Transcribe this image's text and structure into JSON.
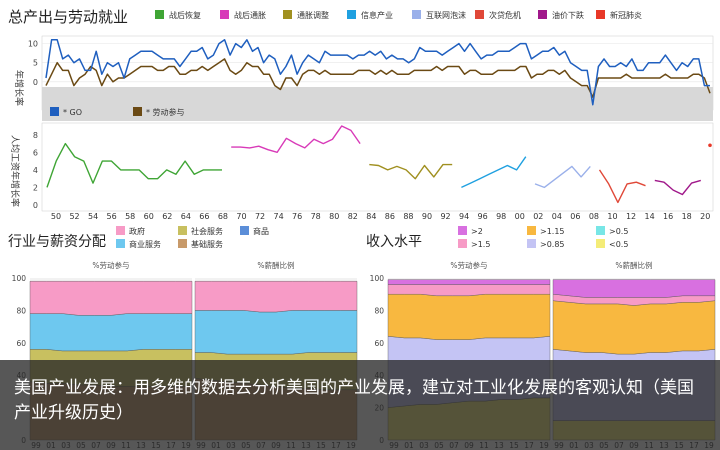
{
  "chart_data": [
    {
      "type": "line",
      "title": "总产出与劳动就业",
      "ylabel": "年增长率",
      "legend": [
        {
          "label": "战后恢复",
          "color": "#3fa535"
        },
        {
          "label": "战后通胀",
          "color": "#d83ab8"
        },
        {
          "label": "通胀调整",
          "color": "#a09020"
        },
        {
          "label": "信息产业",
          "color": "#1fa0e0"
        },
        {
          "label": "互联网泡沫",
          "color": "#9ab0ea"
        },
        {
          "label": "次贷危机",
          "color": "#e04838"
        },
        {
          "label": "油价下跌",
          "color": "#a0188a"
        },
        {
          "label": "新冠肺炎",
          "color": "#e83828"
        }
      ],
      "yticks": [
        10,
        5,
        0
      ],
      "ylim": [
        -10,
        12
      ],
      "series": [
        {
          "name": "* GO",
          "color": "#1f5fbf",
          "values": [
            1,
            11,
            11,
            6,
            7,
            5,
            6,
            3,
            3,
            8,
            2,
            5,
            4,
            5,
            1,
            6,
            7,
            8,
            8,
            8,
            7,
            6,
            6,
            6,
            4,
            6,
            8,
            8,
            9,
            6,
            7,
            10,
            11,
            7,
            10,
            9,
            11,
            8,
            9,
            5,
            7,
            6,
            2,
            4,
            7,
            2,
            5,
            7,
            6,
            5,
            8,
            7,
            7,
            7,
            7,
            6,
            7,
            7,
            8,
            7,
            8,
            6,
            7,
            6,
            6,
            5,
            6,
            9,
            8,
            8,
            8,
            7,
            8,
            9,
            10,
            8,
            10,
            8,
            6,
            7,
            7,
            8,
            8,
            8,
            9,
            10,
            10,
            6,
            7,
            8,
            8,
            9,
            7,
            8,
            5,
            4,
            3,
            3,
            -6,
            4,
            6,
            4,
            4,
            5,
            4,
            6,
            3,
            3,
            5,
            5,
            5,
            7,
            5,
            3,
            5,
            4,
            6,
            6,
            -1,
            -1
          ]
        },
        {
          "name": "* 劳动参与",
          "color": "#6b4a14",
          "values": [
            -1,
            2,
            5,
            3,
            3,
            -1,
            1,
            2,
            4,
            3,
            -1,
            2,
            0,
            1,
            1,
            2,
            3,
            4,
            4,
            4,
            3,
            3,
            4,
            4,
            2,
            2,
            3,
            3,
            4,
            3,
            4,
            5,
            6,
            3,
            2,
            3,
            5,
            4,
            4,
            2,
            2,
            -1,
            -2,
            1,
            1,
            -1,
            2,
            3,
            3,
            2,
            3,
            2,
            2,
            2,
            2,
            2,
            3,
            3,
            3,
            2,
            3,
            2,
            3,
            2,
            2,
            2,
            3,
            3,
            3,
            3,
            4,
            3,
            4,
            4,
            4,
            2,
            3,
            3,
            2,
            2,
            2,
            3,
            3,
            3,
            3,
            4,
            4,
            1,
            2,
            2,
            3,
            3,
            2,
            3,
            1,
            0,
            -1,
            -1,
            -4,
            1,
            1,
            1,
            1,
            1,
            2,
            1,
            1,
            1,
            1,
            1,
            1,
            2,
            1,
            1,
            1,
            1,
            2,
            2,
            1,
            -3
          ]
        }
      ]
    },
    {
      "type": "line",
      "ylabel": "人均工资年增长率",
      "x": [
        "50",
        "52",
        "54",
        "56",
        "58",
        "60",
        "62",
        "64",
        "66",
        "68",
        "70",
        "72",
        "74",
        "76",
        "78",
        "80",
        "82",
        "84",
        "86",
        "88",
        "90",
        "92",
        "94",
        "96",
        "98",
        "00",
        "02",
        "04",
        "06",
        "08",
        "10",
        "12",
        "14",
        "16",
        "18",
        "20"
      ],
      "yticks": [
        8,
        6,
        4,
        2,
        0
      ],
      "ylim": [
        0,
        9
      ],
      "segments": [
        {
          "color": "#3fa535",
          "x": [
            48,
            49,
            50,
            51,
            52,
            53,
            54,
            55,
            56,
            57,
            58,
            59,
            60,
            61,
            62,
            63,
            64,
            65,
            66,
            67
          ],
          "y": [
            2,
            5,
            7,
            5.5,
            5,
            2.5,
            5,
            5,
            4,
            4,
            4,
            3,
            3,
            4,
            3.5,
            5,
            3.5,
            4,
            4,
            4
          ]
        },
        {
          "color": "#d83ab8",
          "x": [
            68,
            69,
            70,
            71,
            72,
            73,
            74,
            75,
            76,
            77,
            78,
            79,
            80,
            81,
            82
          ],
          "y": [
            6.6,
            6.6,
            6.5,
            6.7,
            6.3,
            6,
            7.6,
            7,
            6.5,
            7.5,
            7,
            7.5,
            9,
            8.5,
            7
          ]
        },
        {
          "color": "#a09020",
          "x": [
            83,
            84,
            85,
            86,
            87,
            88,
            89,
            90,
            91,
            92
          ],
          "y": [
            4.6,
            4.5,
            4,
            4.4,
            4,
            3,
            4.5,
            3.2,
            4.6,
            4.6
          ]
        },
        {
          "color": "#1fa0e0",
          "x": [
            93,
            94,
            95,
            96,
            97,
            98,
            99,
            100
          ],
          "y": [
            2,
            2.5,
            3,
            3.5,
            4,
            4.5,
            4,
            5.5
          ]
        },
        {
          "color": "#9ab0ea",
          "x": [
            101,
            102,
            103,
            104,
            105,
            106,
            107
          ],
          "y": [
            2.4,
            2,
            2.8,
            3.6,
            4.4,
            3.2,
            4.4
          ]
        },
        {
          "color": "#e04838",
          "x": [
            108,
            109,
            110,
            111,
            112,
            113
          ],
          "y": [
            4,
            2.4,
            0.3,
            2.4,
            2.6,
            2.2
          ]
        },
        {
          "color": "#a0188a",
          "x": [
            114,
            115,
            116,
            117,
            118,
            119
          ],
          "y": [
            2.8,
            2.6,
            1.7,
            1.2,
            2.5,
            2.8
          ]
        },
        {
          "color": "#e83828",
          "x": [
            120
          ],
          "y": [
            6.8
          ]
        }
      ]
    },
    {
      "type": "area",
      "title": "行业与薪资分配",
      "legend": [
        {
          "label": "政府",
          "color": "#f79bc6"
        },
        {
          "label": "社会服务",
          "color": "#c8c060"
        },
        {
          "label": "商品",
          "color": "#5b8ed8"
        },
        {
          "label": "商业服务",
          "color": "#6ec8ef"
        },
        {
          "label": "基础服务",
          "color": "#c89a6a"
        }
      ],
      "panels": [
        {
          "subtitle": "%劳动参与",
          "yticks": [
            100,
            80,
            60,
            40,
            20,
            0
          ],
          "xticks": [
            "99",
            "01",
            "03",
            "05",
            "07",
            "09",
            "11",
            "13",
            "15",
            "17",
            "19"
          ]
        },
        {
          "subtitle": "%薪酬比例",
          "xticks": [
            "99",
            "01",
            "03",
            "05",
            "07",
            "09",
            "11",
            "13",
            "15",
            "17",
            "19"
          ]
        }
      ]
    },
    {
      "type": "area",
      "title": "收入水平",
      "legend": [
        {
          "label": ">2",
          "color": "#d870e0"
        },
        {
          "label": ">1.15",
          "color": "#f8b840"
        },
        {
          "label": ">0.5",
          "color": "#78e6e6"
        },
        {
          "label": ">1.5",
          "color": "#f79bc6"
        },
        {
          "label": ">0.85",
          "color": "#c4c4f4"
        },
        {
          "label": "<0.5",
          "color": "#f4ec78"
        }
      ],
      "panels": [
        {
          "subtitle": "%劳动参与",
          "yticks": [
            100,
            80,
            60,
            40,
            20,
            0
          ],
          "xticks": [
            "99",
            "01",
            "03",
            "05",
            "07",
            "09",
            "11",
            "13",
            "15",
            "17",
            "19"
          ]
        },
        {
          "subtitle": "%薪酬比例",
          "xticks": [
            "99",
            "01",
            "03",
            "05",
            "07",
            "09",
            "11",
            "13",
            "15",
            "17",
            "19"
          ]
        }
      ]
    }
  ],
  "caption": "美国产业发展：用多维的数据去分析美国的产业发展，建立对工业化发展的客观认知（美国产业升级历史）"
}
